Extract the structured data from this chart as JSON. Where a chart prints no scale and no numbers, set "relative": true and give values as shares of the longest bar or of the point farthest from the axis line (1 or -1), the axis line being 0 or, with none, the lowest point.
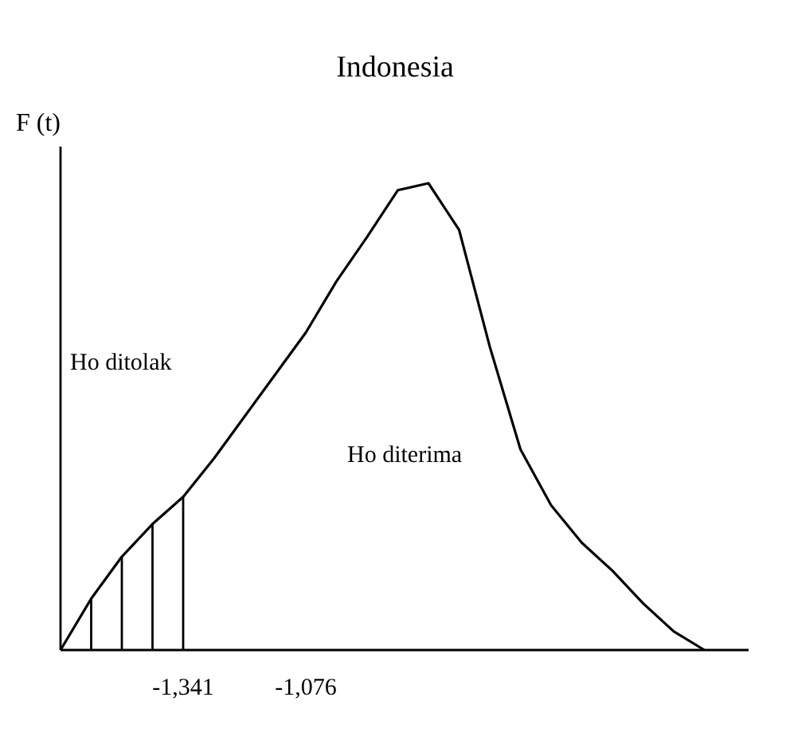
{
  "chart_data": {
    "type": "line",
    "title": "Indonesia",
    "ylabel": "F (t)",
    "relative": true,
    "categories": [
      null,
      null,
      null,
      null,
      "-1,341",
      null,
      null,
      null,
      "-1,076",
      null,
      null,
      null,
      null,
      null,
      null,
      null,
      null,
      null,
      null,
      null,
      null,
      null
    ],
    "series": [
      {
        "color": "#000000",
        "values": [
          0,
          0.11,
          0.2,
          0.27,
          0.328,
          0.41,
          0.5,
          0.59,
          0.68,
          0.79,
          0.885,
          0.985,
          1,
          0.9,
          0.65,
          0.43,
          0.31,
          0.23,
          0.17,
          0.1,
          0.04,
          0
        ]
      }
    ],
    "annotations": [
      "Ho ditolak",
      "Ho diterima"
    ],
    "line_style": "solid"
  }
}
